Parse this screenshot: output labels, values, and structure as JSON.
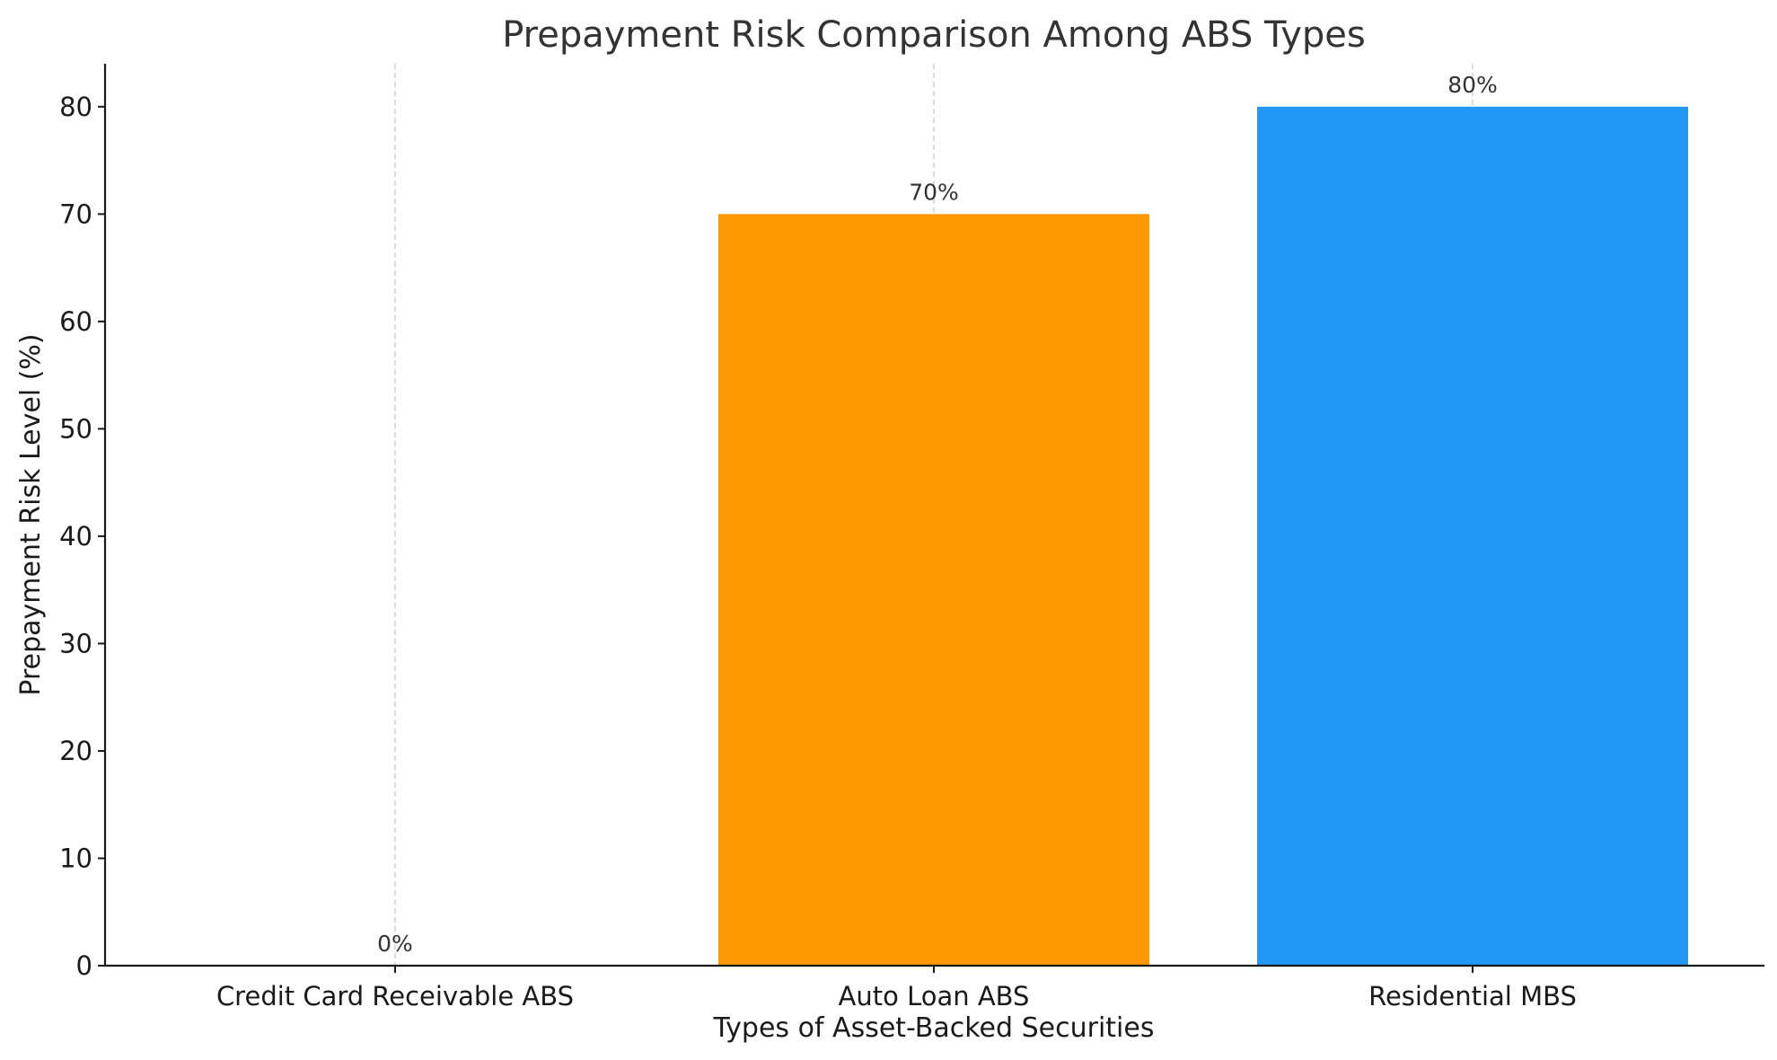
{
  "chart_data": {
    "type": "bar",
    "title": "Prepayment Risk Comparison Among ABS Types",
    "xlabel": "Types of Asset-Backed Securities",
    "ylabel": "Prepayment Risk Level (%)",
    "categories": [
      "Credit Card Receivable ABS",
      "Auto Loan ABS",
      "Residential MBS"
    ],
    "values": [
      0,
      70,
      80
    ],
    "value_labels": [
      "0%",
      "70%",
      "80%"
    ],
    "colors": [
      "#4caf50",
      "#ff9800",
      "#2196f3"
    ],
    "ylim": [
      0,
      84
    ],
    "yticks": [
      0,
      10,
      20,
      30,
      40,
      50,
      60,
      70,
      80
    ],
    "grid": "vertical dashed at category centers",
    "legend": "none"
  }
}
